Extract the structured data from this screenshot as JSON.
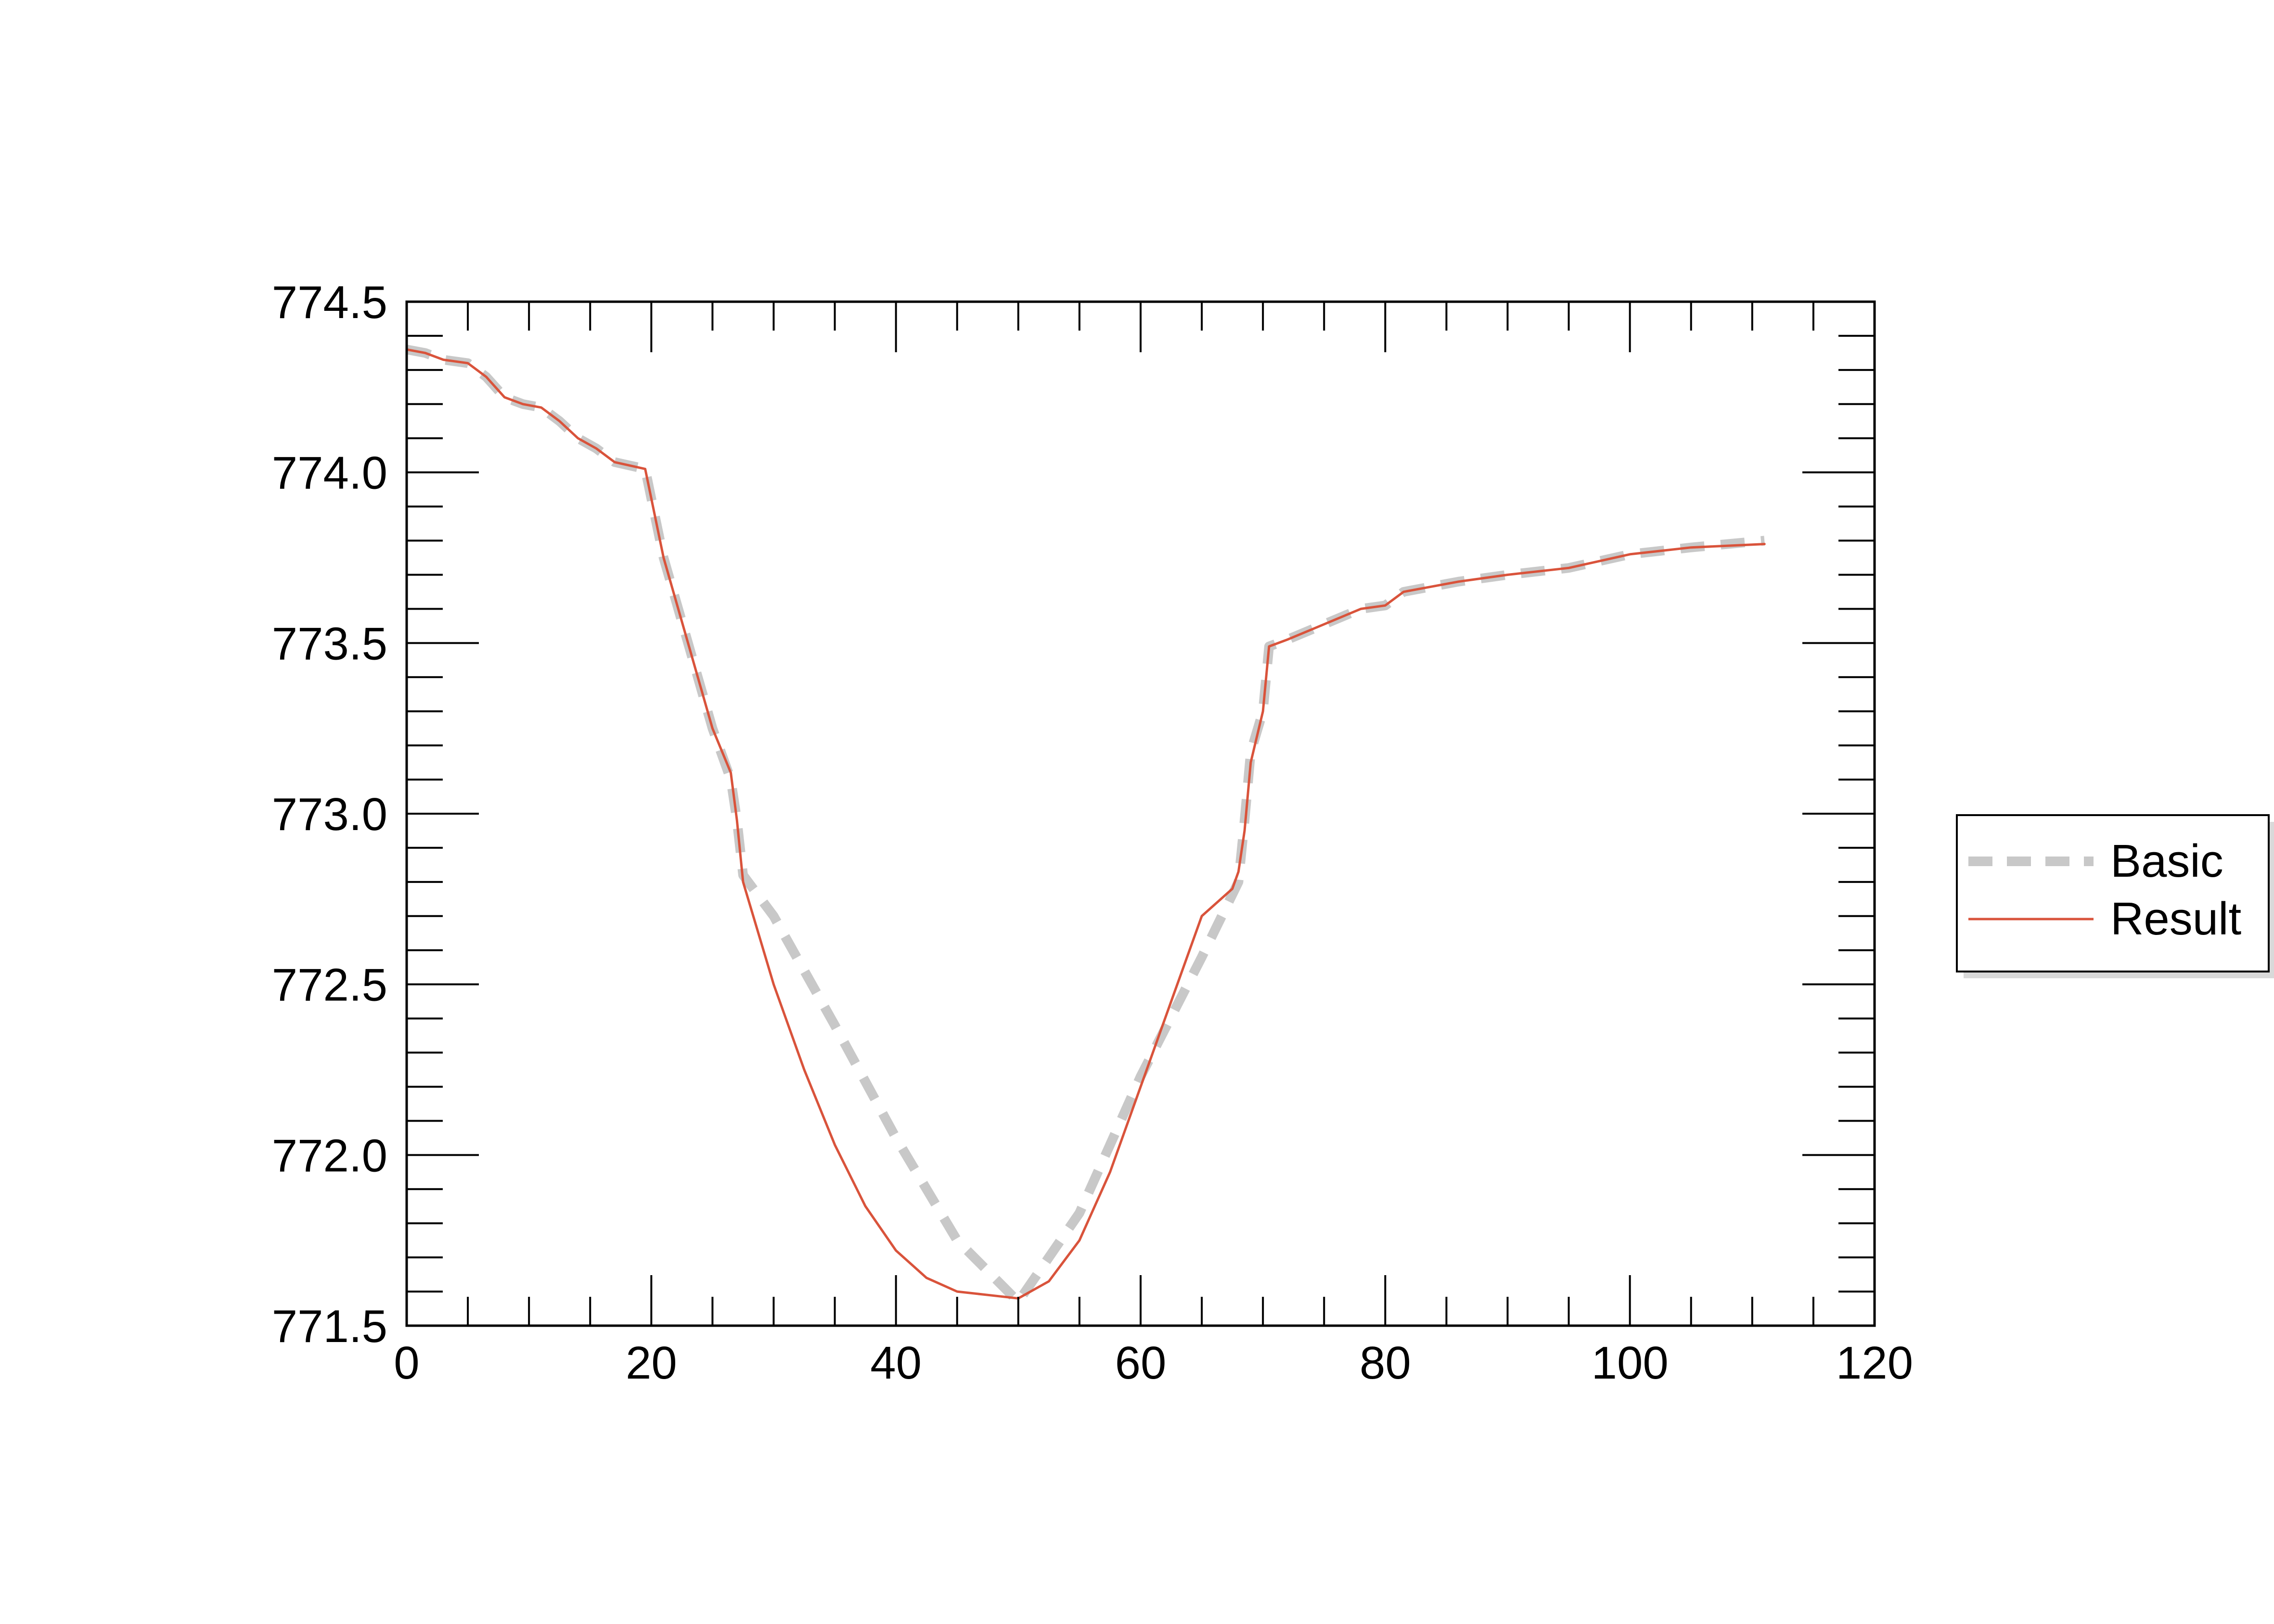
{
  "chart_data": {
    "type": "line",
    "title": "",
    "xlabel": "",
    "ylabel": "",
    "xlim": [
      0,
      120
    ],
    "ylim": [
      771.5,
      774.5
    ],
    "x_ticks": [
      0,
      20,
      40,
      60,
      80,
      100,
      120
    ],
    "y_ticks": [
      771.5,
      772.0,
      772.5,
      773.0,
      773.5,
      774.0,
      774.5
    ],
    "x_tick_labels": [
      "0",
      "20",
      "40",
      "60",
      "80",
      "100",
      "120"
    ],
    "y_tick_labels": [
      "771.5",
      "772.0",
      "772.5",
      "773.0",
      "773.5",
      "774.0",
      "774.5"
    ],
    "grid": false,
    "legend_position": "right",
    "series": [
      {
        "name": "Basic",
        "color": "#c8c8c8",
        "style": "dashed",
        "x": [
          0,
          1.5,
          3,
          5,
          6.5,
          8,
          9.5,
          11,
          12.5,
          14,
          15.5,
          17,
          19.5,
          21,
          23,
          25,
          26.5,
          27,
          27.5,
          30,
          35,
          40,
          45,
          50,
          55,
          60,
          65,
          68,
          68.5,
          69,
          70,
          70.5,
          72,
          74,
          76,
          78,
          80,
          81.5,
          83,
          86,
          90,
          95,
          100,
          105,
          111
        ],
        "values": [
          774.36,
          774.35,
          774.33,
          774.32,
          774.28,
          774.22,
          774.2,
          774.19,
          774.15,
          774.1,
          774.07,
          774.03,
          774.01,
          773.75,
          773.5,
          773.25,
          773.1,
          772.98,
          772.82,
          772.7,
          772.38,
          772.05,
          771.75,
          771.57,
          771.83,
          772.23,
          772.58,
          772.8,
          772.98,
          773.18,
          773.3,
          773.49,
          773.51,
          773.54,
          773.57,
          773.6,
          773.61,
          773.65,
          773.66,
          773.68,
          773.7,
          773.72,
          773.76,
          773.78,
          773.8
        ]
      },
      {
        "name": "Result",
        "color": "#d9533b",
        "style": "solid",
        "x": [
          0,
          1.5,
          3,
          5,
          6.5,
          8,
          9.5,
          11,
          12.5,
          14,
          15.5,
          17,
          19.5,
          21,
          23,
          25,
          26.5,
          27,
          27.5,
          30,
          32.5,
          35,
          37.5,
          40,
          42.5,
          45,
          47.5,
          50,
          52.5,
          55,
          57.5,
          60,
          62.5,
          65,
          67.5,
          68,
          68.5,
          69,
          70,
          70.5,
          72,
          74,
          76,
          78,
          80,
          81.5,
          83,
          86,
          90,
          95,
          100,
          105,
          111
        ],
        "values": [
          774.36,
          774.35,
          774.33,
          774.32,
          774.28,
          774.22,
          774.2,
          774.19,
          774.15,
          774.1,
          774.07,
          774.03,
          774.01,
          773.75,
          773.5,
          773.25,
          773.12,
          772.98,
          772.8,
          772.5,
          772.25,
          772.03,
          771.85,
          771.72,
          771.64,
          771.6,
          771.59,
          771.58,
          771.63,
          771.75,
          771.95,
          772.2,
          772.45,
          772.7,
          772.78,
          772.83,
          772.95,
          773.15,
          773.3,
          773.49,
          773.51,
          773.54,
          773.57,
          773.6,
          773.61,
          773.65,
          773.66,
          773.68,
          773.7,
          773.72,
          773.76,
          773.78,
          773.79
        ]
      }
    ]
  }
}
